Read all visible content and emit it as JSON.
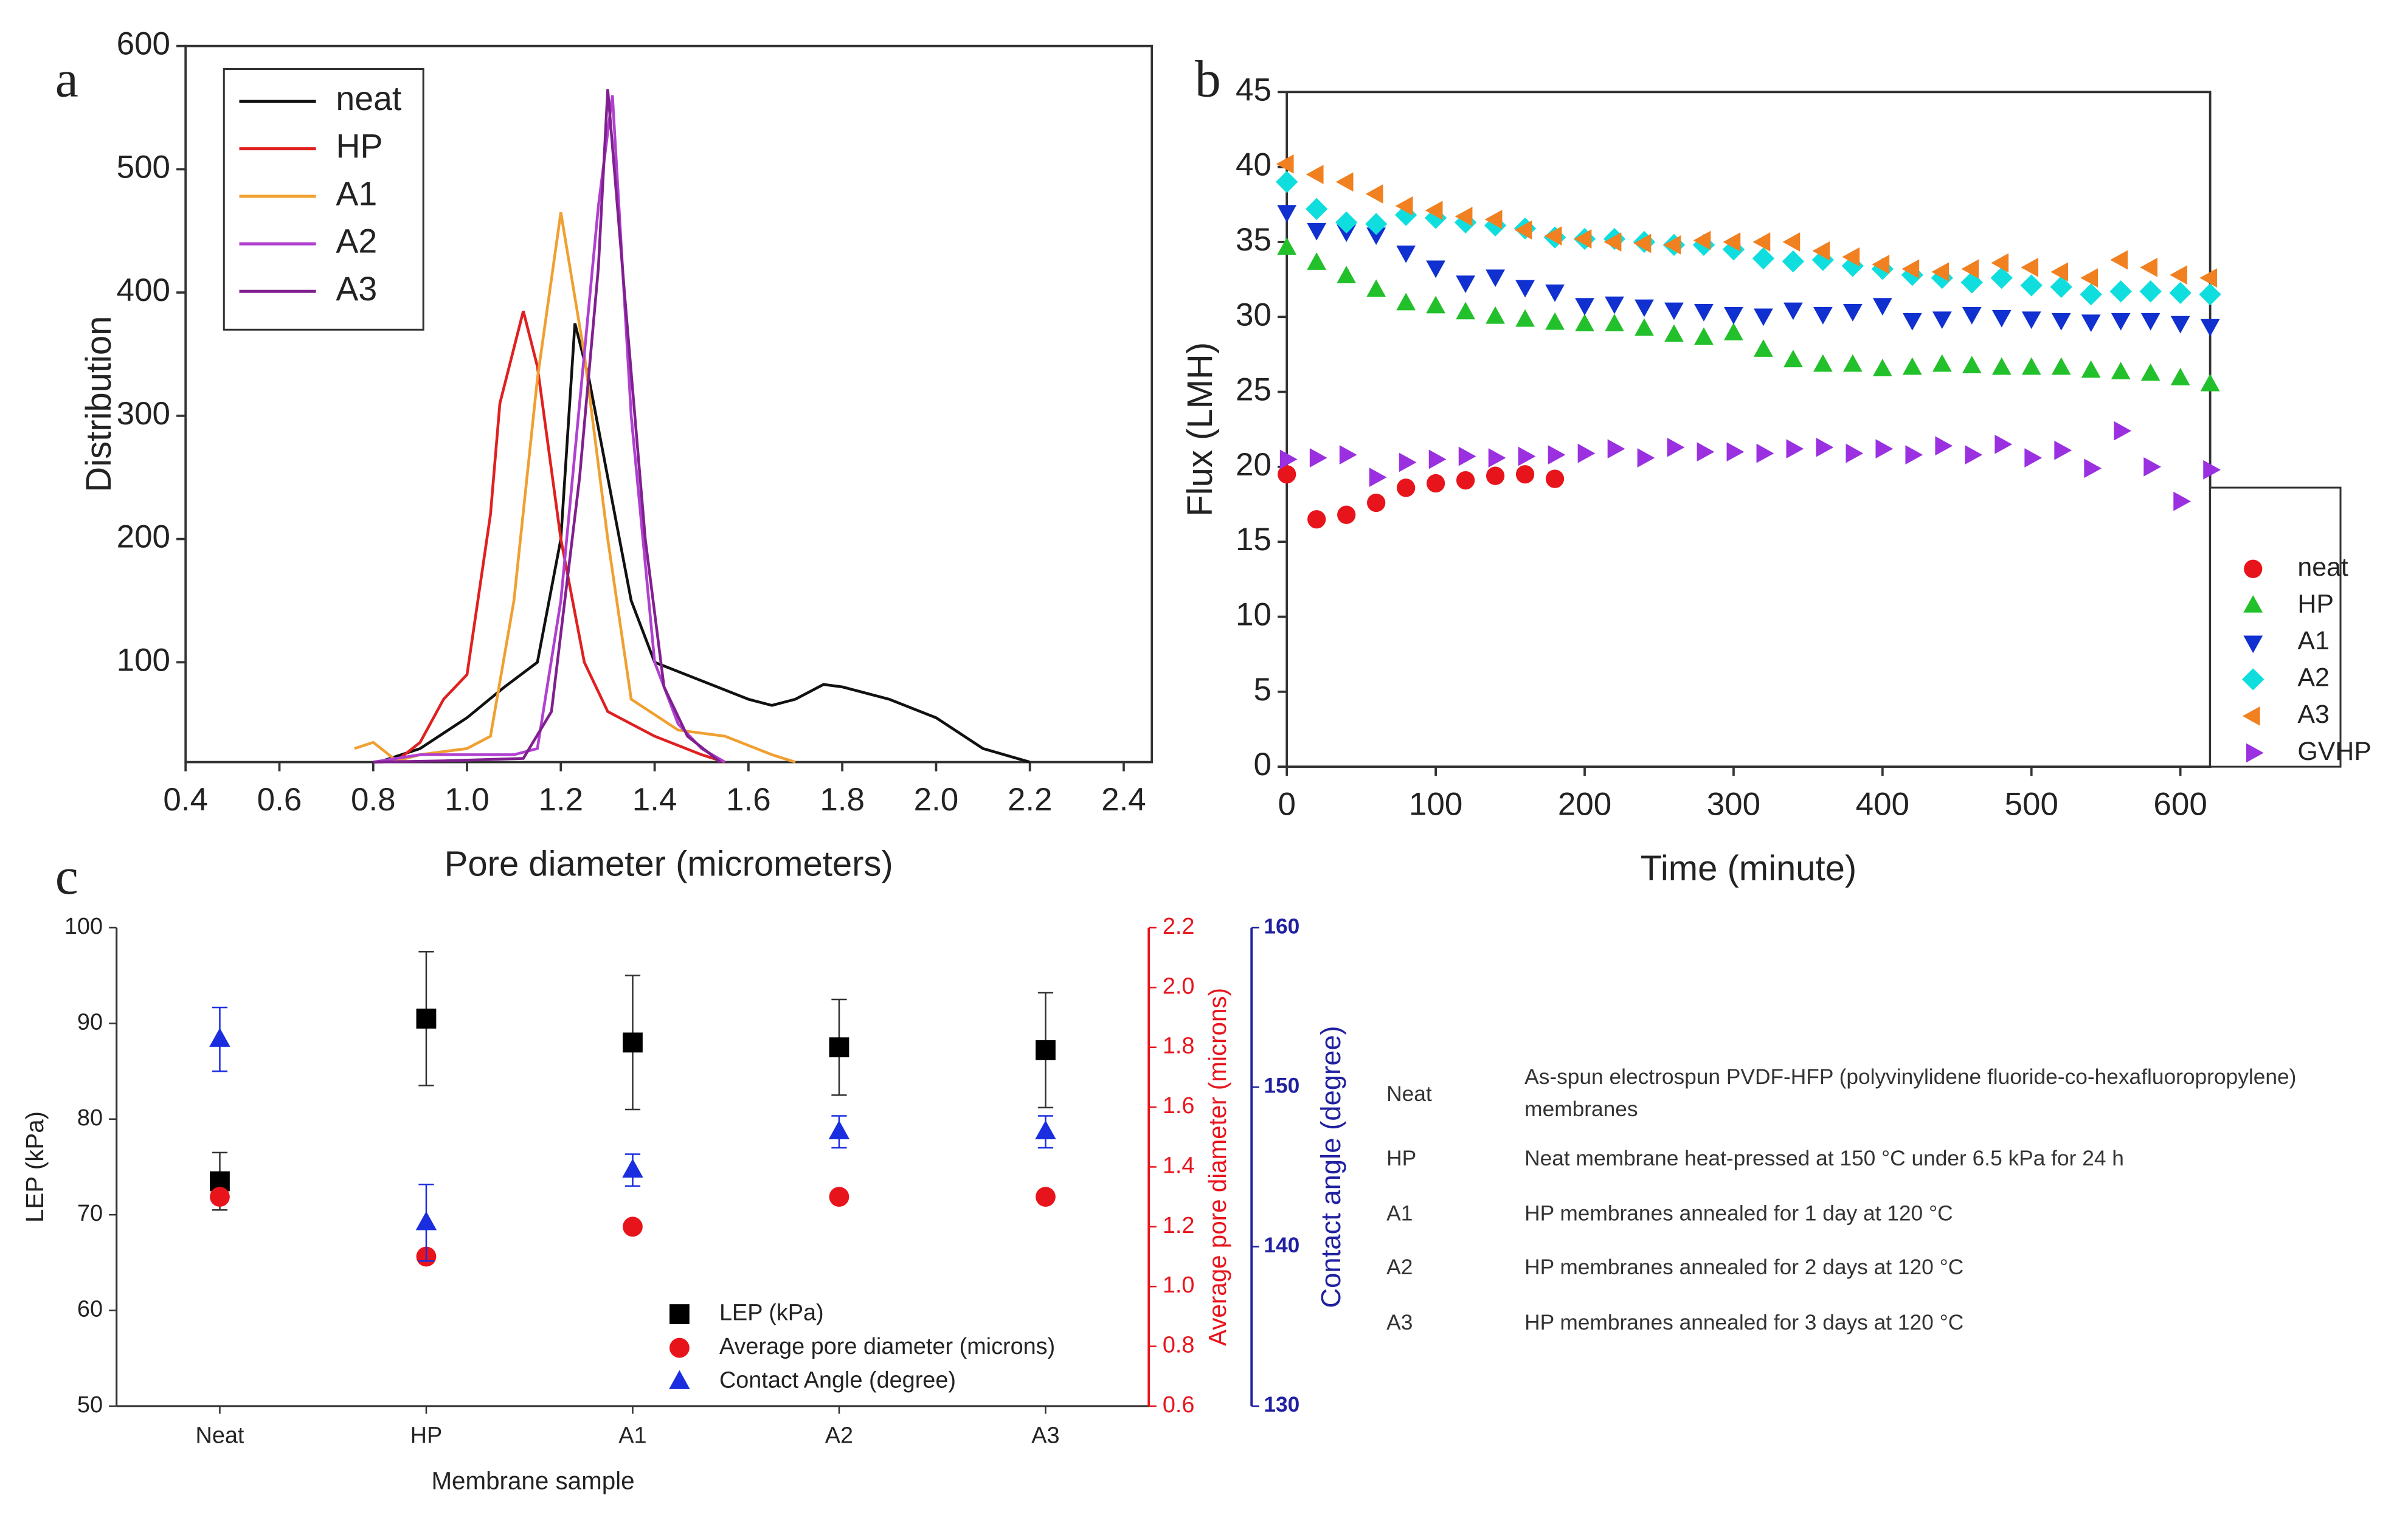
{
  "chart_data": [
    {
      "type": "line",
      "label": "a",
      "xlabel": "Pore diameter (micrometers)",
      "ylabel": "Distribution",
      "xlim": [
        0.4,
        2.46
      ],
      "ylim": [
        19,
        600
      ],
      "xticks": [
        0.4,
        0.6,
        0.8,
        {
          "value": 1,
          "label": "1.0"
        },
        1.2,
        1.4,
        1.6,
        1.8,
        {
          "value": 2,
          "label": "2.0"
        },
        2.2,
        2.4
      ],
      "yticks": [
        100,
        200,
        300,
        400,
        500,
        600
      ],
      "legend": "upper left",
      "series": [
        {
          "name": "neat",
          "color": "#111111",
          "x": [
            0.82,
            0.9,
            1.0,
            1.08,
            1.15,
            1.2,
            1.23,
            1.26,
            1.3,
            1.35,
            1.4,
            1.5,
            1.6,
            1.65,
            1.7,
            1.76,
            1.8,
            1.9,
            2.0,
            2.1,
            2.2
          ],
          "values": [
            20,
            30,
            55,
            80,
            100,
            200,
            375,
            330,
            250,
            150,
            100,
            85,
            70,
            65,
            70,
            82,
            80,
            70,
            55,
            30,
            19
          ]
        },
        {
          "name": "HP",
          "color": "#e02020",
          "x": [
            0.85,
            0.9,
            0.95,
            1.0,
            1.05,
            1.07,
            1.12,
            1.15,
            1.2,
            1.25,
            1.3,
            1.4,
            1.5,
            1.55
          ],
          "values": [
            20,
            35,
            70,
            90,
            220,
            310,
            385,
            340,
            200,
            100,
            60,
            40,
            25,
            19
          ]
        },
        {
          "name": "A1",
          "color": "#f0a030",
          "x": [
            0.76,
            0.8,
            0.85,
            0.9,
            1.0,
            1.05,
            1.1,
            1.15,
            1.2,
            1.25,
            1.3,
            1.35,
            1.45,
            1.55,
            1.65,
            1.7
          ],
          "values": [
            30,
            35,
            20,
            25,
            30,
            40,
            150,
            330,
            465,
            350,
            200,
            70,
            45,
            40,
            25,
            19
          ]
        },
        {
          "name": "A2",
          "color": "#b040d0",
          "x": [
            0.8,
            0.9,
            1.0,
            1.1,
            1.15,
            1.2,
            1.25,
            1.28,
            1.31,
            1.35,
            1.4,
            1.45,
            1.5,
            1.55
          ],
          "values": [
            19,
            25,
            25,
            25,
            30,
            150,
            350,
            470,
            560,
            300,
            100,
            50,
            30,
            19
          ]
        },
        {
          "name": "A3",
          "color": "#80208f",
          "x": [
            0.8,
            0.95,
            1.12,
            1.18,
            1.24,
            1.28,
            1.3,
            1.34,
            1.38,
            1.42,
            1.47,
            1.54
          ],
          "values": [
            19,
            20,
            22,
            60,
            250,
            420,
            565,
            380,
            200,
            80,
            40,
            19
          ]
        }
      ]
    },
    {
      "type": "scatter",
      "label": "b",
      "xlabel": "Time (minute)",
      "ylabel": "Flux (LMH)",
      "xlim": [
        0,
        620
      ],
      "ylim": [
        0,
        45
      ],
      "xticks": [
        0,
        100,
        200,
        300,
        400,
        500,
        600
      ],
      "yticks": [
        0,
        5,
        10,
        15,
        20,
        25,
        30,
        35,
        40,
        45
      ],
      "legend": "right",
      "series": [
        {
          "name": "neat",
          "color": "#e8141c",
          "marker": "circle",
          "x": [
            0,
            20,
            40,
            60,
            80,
            100,
            120,
            140,
            160,
            180
          ],
          "values": [
            19.5,
            16.5,
            16.8,
            17.6,
            18.6,
            18.9,
            19.1,
            19.4,
            19.5,
            19.2
          ]
        },
        {
          "name": "HP",
          "color": "#22c02a",
          "marker": "triangle-up",
          "x": [
            0,
            20,
            40,
            60,
            80,
            100,
            120,
            140,
            160,
            180,
            200,
            220,
            240,
            260,
            280,
            300,
            320,
            340,
            360,
            380,
            400,
            420,
            440,
            460,
            480,
            500,
            520,
            540,
            560,
            580,
            600,
            620
          ],
          "values": [
            34.6,
            33.6,
            32.7,
            31.8,
            30.9,
            30.7,
            30.3,
            30.0,
            29.8,
            29.6,
            29.5,
            29.5,
            29.2,
            28.8,
            28.6,
            28.9,
            27.8,
            27.1,
            26.8,
            26.8,
            26.5,
            26.6,
            26.8,
            26.7,
            26.6,
            26.6,
            26.6,
            26.4,
            26.3,
            26.2,
            25.9,
            25.5
          ]
        },
        {
          "name": "A1",
          "color": "#1030d0",
          "marker": "triangle-down",
          "x": [
            0,
            20,
            40,
            60,
            80,
            100,
            120,
            140,
            160,
            180,
            200,
            220,
            240,
            260,
            280,
            300,
            320,
            340,
            360,
            380,
            400,
            420,
            440,
            460,
            480,
            500,
            520,
            540,
            560,
            580,
            600,
            620
          ],
          "values": [
            37.0,
            35.8,
            35.7,
            35.5,
            34.3,
            33.3,
            32.3,
            32.7,
            32.0,
            31.7,
            30.8,
            30.9,
            30.7,
            30.5,
            30.4,
            30.2,
            30.1,
            30.5,
            30.2,
            30.4,
            30.8,
            29.8,
            29.9,
            30.2,
            30.0,
            29.9,
            29.8,
            29.7,
            29.8,
            29.8,
            29.6,
            29.4
          ]
        },
        {
          "name": "A2",
          "color": "#10dede",
          "marker": "diamond",
          "x": [
            0,
            20,
            40,
            60,
            80,
            100,
            120,
            140,
            160,
            180,
            200,
            220,
            240,
            260,
            280,
            300,
            320,
            340,
            360,
            380,
            400,
            420,
            440,
            460,
            480,
            500,
            520,
            540,
            560,
            580,
            600,
            620
          ],
          "values": [
            39.0,
            37.2,
            36.3,
            36.2,
            36.8,
            36.6,
            36.3,
            36.1,
            35.9,
            35.3,
            35.2,
            35.2,
            35.0,
            34.8,
            34.8,
            34.5,
            33.9,
            33.7,
            33.8,
            33.4,
            33.2,
            32.8,
            32.6,
            32.3,
            32.6,
            32.1,
            32.0,
            31.5,
            31.7,
            31.7,
            31.6,
            31.5
          ]
        },
        {
          "name": "A3",
          "color": "#f08020",
          "marker": "triangle-left",
          "x": [
            0,
            20,
            40,
            60,
            80,
            100,
            120,
            140,
            160,
            180,
            200,
            220,
            240,
            260,
            280,
            300,
            320,
            340,
            360,
            380,
            400,
            420,
            440,
            460,
            480,
            500,
            520,
            540,
            560,
            580,
            600,
            620
          ],
          "values": [
            40.2,
            39.5,
            39.0,
            38.2,
            37.4,
            37.1,
            36.7,
            36.5,
            35.8,
            35.4,
            35.2,
            35.0,
            34.9,
            34.8,
            35.1,
            35.0,
            35.0,
            35.0,
            34.4,
            34.0,
            33.5,
            33.2,
            33.0,
            33.2,
            33.6,
            33.3,
            33.0,
            32.6,
            33.8,
            33.3,
            32.8,
            32.6
          ]
        },
        {
          "name": "GVHP",
          "color": "#9a30e0",
          "marker": "triangle-right",
          "x": [
            0,
            20,
            40,
            60,
            80,
            100,
            120,
            140,
            160,
            180,
            200,
            220,
            240,
            260,
            280,
            300,
            320,
            340,
            360,
            380,
            400,
            420,
            440,
            460,
            480,
            500,
            520,
            540,
            560,
            580,
            600,
            620
          ],
          "values": [
            20.5,
            20.6,
            20.8,
            19.3,
            20.3,
            20.5,
            20.7,
            20.6,
            20.7,
            20.8,
            20.9,
            21.2,
            20.6,
            21.3,
            21.0,
            21.0,
            20.9,
            21.2,
            21.3,
            20.9,
            21.2,
            20.8,
            21.4,
            20.8,
            21.5,
            20.6,
            21.1,
            19.9,
            22.4,
            20.0,
            17.7,
            19.8
          ]
        }
      ]
    },
    {
      "type": "dot",
      "label": "c",
      "xlabel": "Membrane sample",
      "ylabel": "LEP (kPa)",
      "y2label": "Average pore diameter (microns)",
      "y3label": "Contact angle (degree)",
      "categories": [
        "Neat",
        "HP",
        "A1",
        "A2",
        "A3"
      ],
      "ylim": [
        50,
        100
      ],
      "yticks": [
        50,
        60,
        70,
        80,
        90,
        100
      ],
      "y2lim": [
        0.6,
        2.2
      ],
      "y2ticks": [
        0.6,
        0.8,
        {
          "value": 1,
          "label": "1.0"
        },
        1.2,
        1.4,
        1.6,
        1.8,
        {
          "value": 2,
          "label": "2.0"
        },
        2.2
      ],
      "y2color": "#e8141c",
      "y3lim": [
        130,
        160
      ],
      "y3ticks": [
        130,
        140,
        150,
        160
      ],
      "y3color": "#2020a0",
      "legend": "lower right",
      "series": [
        {
          "name": "LEP (kPa)",
          "color": "#000000",
          "marker": "square",
          "values": [
            73.5,
            90.5,
            88,
            87.5,
            87.2
          ],
          "errors": [
            3,
            7,
            7,
            5,
            6
          ]
        },
        {
          "name": "Average pore diameter (microns)",
          "color": "#e8141c",
          "marker": "circle",
          "axis": "y2",
          "values": [
            1.3,
            1.1,
            1.2,
            1.3,
            1.3
          ]
        },
        {
          "name": "Contact Angle (degree)",
          "color": "#1a2ee0",
          "marker": "triangle-up",
          "axis": "y3",
          "values": [
            153,
            141.5,
            144.8,
            147.2,
            147.2
          ],
          "errors": [
            2,
            2.4,
            1,
            1,
            1
          ]
        }
      ]
    }
  ],
  "table": {
    "rows": [
      [
        "Neat",
        "As-spun electrospun PVDF-HFP (polyvinylidene fluoride-co-hexafluoropropylene) membranes"
      ],
      [
        "HP",
        "Neat membrane heat-pressed at 150 °C under 6.5 kPa for 24 h"
      ],
      [
        "A1",
        "HP membranes annealed for 1 day at 120 °C"
      ],
      [
        "A2",
        "HP membranes annealed for 2 days at 120 °C"
      ],
      [
        "A3",
        "HP membranes annealed for 3 days at 120 °C"
      ]
    ]
  }
}
